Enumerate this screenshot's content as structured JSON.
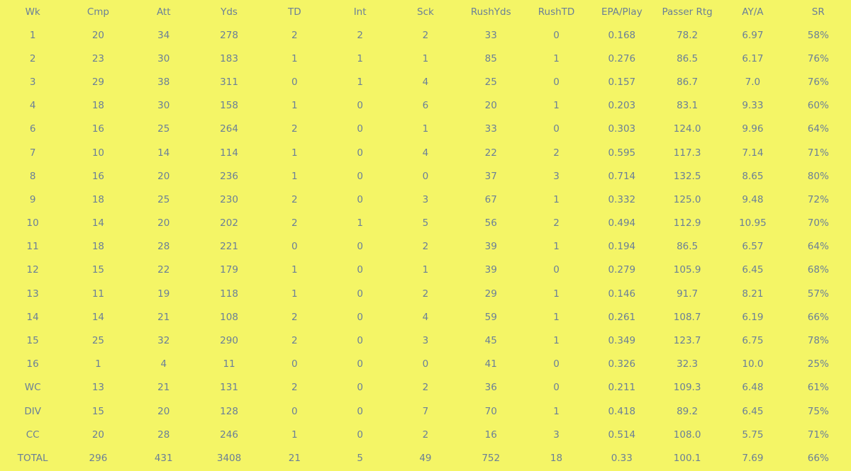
{
  "chart_data": {
    "type": "table",
    "columns": [
      "Wk",
      "Cmp",
      "Att",
      "Yds",
      "TD",
      "Int",
      "Sck",
      "RushYds",
      "RushTD",
      "EPA/Play",
      "Passer Rtg",
      "AY/A",
      "SR"
    ],
    "rows": [
      [
        "1",
        "20",
        "34",
        "278",
        "2",
        "2",
        "2",
        "33",
        "0",
        "0.168",
        "78.2",
        "6.97",
        "58%"
      ],
      [
        "2",
        "23",
        "30",
        "183",
        "1",
        "1",
        "1",
        "85",
        "1",
        "0.276",
        "86.5",
        "6.17",
        "76%"
      ],
      [
        "3",
        "29",
        "38",
        "311",
        "0",
        "1",
        "4",
        "25",
        "0",
        "0.157",
        "86.7",
        "7.0",
        "76%"
      ],
      [
        "4",
        "18",
        "30",
        "158",
        "1",
        "0",
        "6",
        "20",
        "1",
        "0.203",
        "83.1",
        "9.33",
        "60%"
      ],
      [
        "6",
        "16",
        "25",
        "264",
        "2",
        "0",
        "1",
        "33",
        "0",
        "0.303",
        "124.0",
        "9.96",
        "64%"
      ],
      [
        "7",
        "10",
        "14",
        "114",
        "1",
        "0",
        "4",
        "22",
        "2",
        "0.595",
        "117.3",
        "7.14",
        "71%"
      ],
      [
        "8",
        "16",
        "20",
        "236",
        "1",
        "0",
        "0",
        "37",
        "3",
        "0.714",
        "132.5",
        "8.65",
        "80%"
      ],
      [
        "9",
        "18",
        "25",
        "230",
        "2",
        "0",
        "3",
        "67",
        "1",
        "0.332",
        "125.0",
        "9.48",
        "72%"
      ],
      [
        "10",
        "14",
        "20",
        "202",
        "2",
        "1",
        "5",
        "56",
        "2",
        "0.494",
        "112.9",
        "10.95",
        "70%"
      ],
      [
        "11",
        "18",
        "28",
        "221",
        "0",
        "0",
        "2",
        "39",
        "1",
        "0.194",
        "86.5",
        "6.57",
        "64%"
      ],
      [
        "12",
        "15",
        "22",
        "179",
        "1",
        "0",
        "1",
        "39",
        "0",
        "0.279",
        "105.9",
        "6.45",
        "68%"
      ],
      [
        "13",
        "11",
        "19",
        "118",
        "1",
        "0",
        "2",
        "29",
        "1",
        "0.146",
        "91.7",
        "8.21",
        "57%"
      ],
      [
        "14",
        "14",
        "21",
        "108",
        "2",
        "0",
        "4",
        "59",
        "1",
        "0.261",
        "108.7",
        "6.19",
        "66%"
      ],
      [
        "15",
        "25",
        "32",
        "290",
        "2",
        "0",
        "3",
        "45",
        "1",
        "0.349",
        "123.7",
        "6.75",
        "78%"
      ],
      [
        "16",
        "1",
        "4",
        "11",
        "0",
        "0",
        "0",
        "41",
        "0",
        "0.326",
        "32.3",
        "10.0",
        "25%"
      ],
      [
        "WC",
        "13",
        "21",
        "131",
        "2",
        "0",
        "2",
        "36",
        "0",
        "0.211",
        "109.3",
        "6.48",
        "61%"
      ],
      [
        "DIV",
        "15",
        "20",
        "128",
        "0",
        "0",
        "7",
        "70",
        "1",
        "0.418",
        "89.2",
        "6.45",
        "75%"
      ],
      [
        "CC",
        "20",
        "28",
        "246",
        "1",
        "0",
        "2",
        "16",
        "3",
        "0.514",
        "108.0",
        "5.75",
        "71%"
      ],
      [
        "TOTAL",
        "296",
        "431",
        "3408",
        "21",
        "5",
        "49",
        "752",
        "18",
        "0.33",
        "100.1",
        "7.69",
        "66%"
      ]
    ]
  },
  "colors": {
    "background": "#f4f566",
    "text": "#6a7f98"
  }
}
